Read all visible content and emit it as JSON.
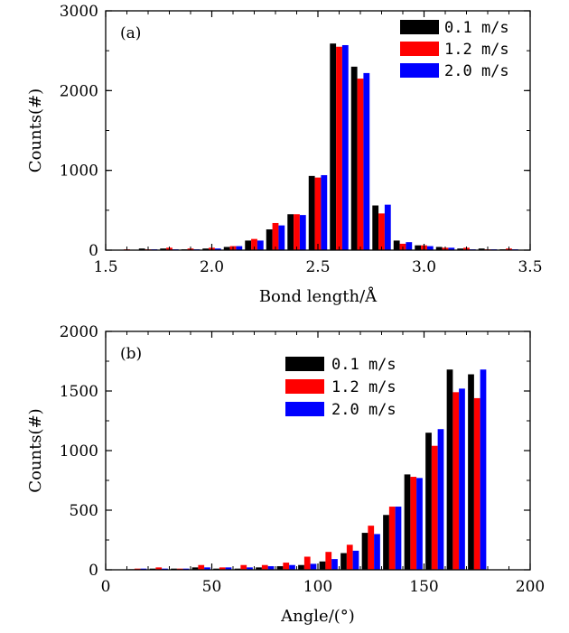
{
  "chart_data": [
    {
      "type": "bar",
      "panel_label": "(a)",
      "xlabel": "Bond length/Å",
      "ylabel": "Counts(#)",
      "xlim": [
        1.5,
        3.5
      ],
      "ylim": [
        0,
        3000
      ],
      "xticks": [
        "1.5",
        "2.0",
        "2.5",
        "3.0",
        "3.5"
      ],
      "yticks": [
        "0",
        "1000",
        "2000",
        "3000"
      ],
      "bin_width": 0.1,
      "legend_position": "top-right",
      "x": [
        1.6,
        1.7,
        1.8,
        1.9,
        2.0,
        2.1,
        2.2,
        2.3,
        2.4,
        2.5,
        2.6,
        2.7,
        2.8,
        2.9,
        3.0,
        3.1,
        3.2,
        3.3,
        3.4
      ],
      "series": [
        {
          "name": "0.1 m/s",
          "color": "#000000",
          "values": [
            0,
            20,
            20,
            10,
            20,
            40,
            120,
            260,
            450,
            930,
            2590,
            2300,
            560,
            120,
            60,
            40,
            20,
            20,
            10
          ]
        },
        {
          "name": "1.2 m/s",
          "color": "#ff0000",
          "values": [
            10,
            10,
            30,
            20,
            30,
            50,
            140,
            340,
            450,
            910,
            2550,
            2150,
            460,
            80,
            60,
            30,
            30,
            10,
            20
          ]
        },
        {
          "name": "2.0 m/s",
          "color": "#0000ff",
          "values": [
            0,
            10,
            10,
            10,
            20,
            50,
            120,
            310,
            440,
            940,
            2570,
            2220,
            570,
            100,
            50,
            30,
            10,
            10,
            10
          ]
        }
      ]
    },
    {
      "type": "bar",
      "panel_label": "(b)",
      "xlabel": "Angle/(°)",
      "ylabel": "Counts(#)",
      "xlim": [
        0,
        200
      ],
      "ylim": [
        0,
        2000
      ],
      "xticks": [
        "0",
        "50",
        "100",
        "150",
        "200"
      ],
      "yticks": [
        "0",
        "500",
        "1000",
        "1500",
        "2000"
      ],
      "bin_width": 10,
      "legend_position": "top-center",
      "x": [
        15,
        25,
        35,
        45,
        55,
        65,
        75,
        85,
        95,
        105,
        115,
        125,
        135,
        145,
        155,
        165,
        175
      ],
      "series": [
        {
          "name": "0.1 m/s",
          "color": "#000000",
          "values": [
            5,
            10,
            10,
            20,
            10,
            10,
            20,
            30,
            40,
            70,
            140,
            310,
            460,
            800,
            1150,
            1680,
            1640
          ]
        },
        {
          "name": "1.2 m/s",
          "color": "#ff0000",
          "values": [
            10,
            20,
            10,
            40,
            20,
            40,
            40,
            60,
            110,
            150,
            210,
            370,
            530,
            780,
            1040,
            1490,
            1440
          ]
        },
        {
          "name": "2.0 m/s",
          "color": "#0000ff",
          "values": [
            10,
            10,
            10,
            20,
            20,
            20,
            30,
            40,
            50,
            90,
            160,
            300,
            530,
            770,
            1180,
            1520,
            1680
          ]
        }
      ]
    }
  ]
}
